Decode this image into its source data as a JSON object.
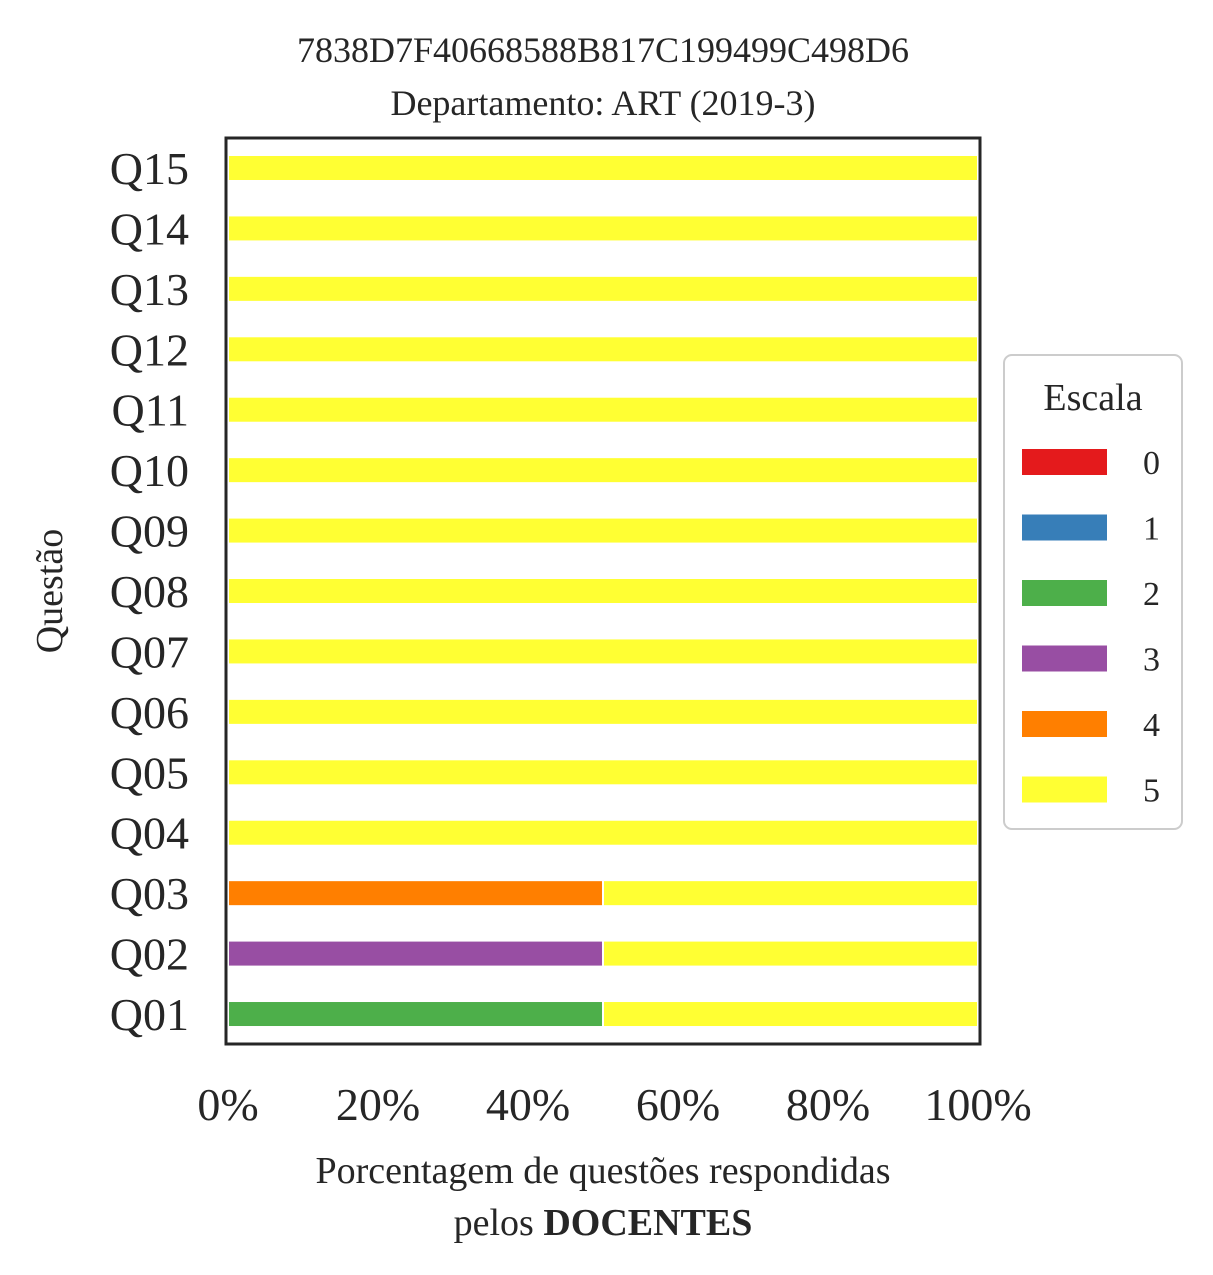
{
  "chart_data": {
    "type": "bar",
    "orientation": "horizontal",
    "stacked": true,
    "title": "7838D7F40668588B817C199499C498D6",
    "subtitle": "Departamento: ART (2019-3)",
    "ylabel": "Questão",
    "xlabel_line1": "Porcentagem de questões respondidas",
    "xlabel_line2_prefix": "pelos",
    "xlabel_line2_bold": "DOCENTES",
    "xlim": [
      0,
      100
    ],
    "xticks": [
      "0%",
      "20%",
      "40%",
      "60%",
      "80%",
      "100%"
    ],
    "categories": [
      "Q01",
      "Q02",
      "Q03",
      "Q04",
      "Q05",
      "Q06",
      "Q07",
      "Q08",
      "Q09",
      "Q10",
      "Q11",
      "Q12",
      "Q13",
      "Q14",
      "Q15"
    ],
    "legend": {
      "title": "Escala",
      "position": "center-right"
    },
    "series": [
      {
        "name": "0",
        "color": "#e41a1c",
        "values": [
          0,
          0,
          0,
          0,
          0,
          0,
          0,
          0,
          0,
          0,
          0,
          0,
          0,
          0,
          0
        ]
      },
      {
        "name": "1",
        "color": "#377eb8",
        "values": [
          0,
          0,
          0,
          0,
          0,
          0,
          0,
          0,
          0,
          0,
          0,
          0,
          0,
          0,
          0
        ]
      },
      {
        "name": "2",
        "color": "#4daf4a",
        "values": [
          50,
          0,
          0,
          0,
          0,
          0,
          0,
          0,
          0,
          0,
          0,
          0,
          0,
          0,
          0
        ]
      },
      {
        "name": "3",
        "color": "#984ea3",
        "values": [
          0,
          50,
          0,
          0,
          0,
          0,
          0,
          0,
          0,
          0,
          0,
          0,
          0,
          0,
          0
        ]
      },
      {
        "name": "4",
        "color": "#ff7f00",
        "values": [
          0,
          0,
          50,
          0,
          0,
          0,
          0,
          0,
          0,
          0,
          0,
          0,
          0,
          0,
          0
        ]
      },
      {
        "name": "5",
        "color": "#ffff33",
        "values": [
          50,
          50,
          50,
          100,
          100,
          100,
          100,
          100,
          100,
          100,
          100,
          100,
          100,
          100,
          100
        ]
      }
    ]
  }
}
